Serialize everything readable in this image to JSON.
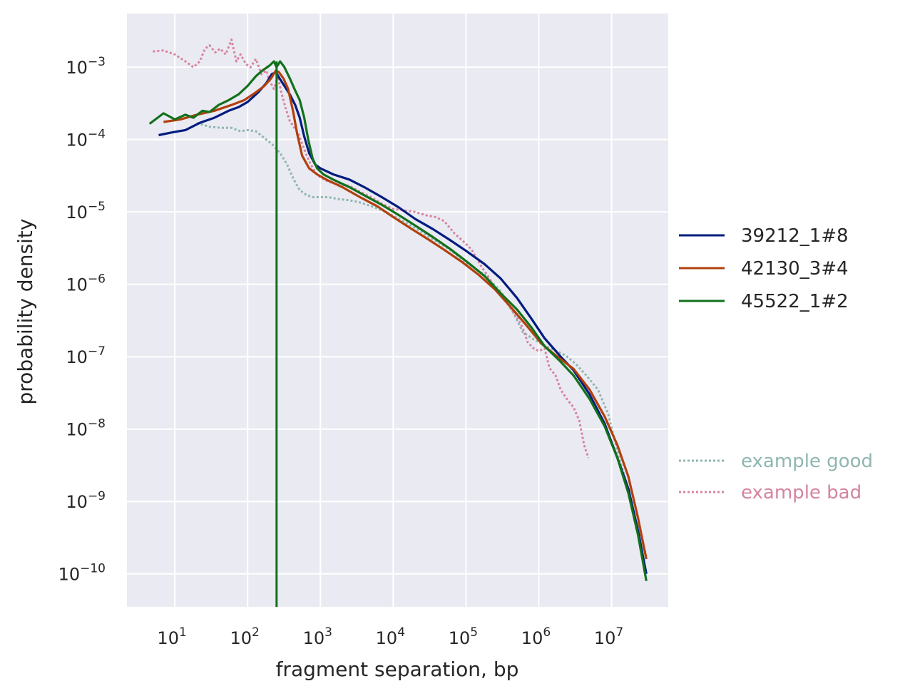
{
  "chart_data": {
    "type": "line",
    "xlabel": "fragment separation, bp",
    "ylabel": "probability density",
    "xscale": "log",
    "yscale": "log",
    "xlim": [
      2.2,
      60000000
    ],
    "ylim": [
      3.5e-11,
      0.0055
    ],
    "x_ticks": [
      {
        "base": "10",
        "exp": "1",
        "value": 10
      },
      {
        "base": "10",
        "exp": "2",
        "value": 100
      },
      {
        "base": "10",
        "exp": "3",
        "value": 1000
      },
      {
        "base": "10",
        "exp": "4",
        "value": 10000
      },
      {
        "base": "10",
        "exp": "5",
        "value": 100000
      },
      {
        "base": "10",
        "exp": "6",
        "value": 1000000
      },
      {
        "base": "10",
        "exp": "7",
        "value": 10000000
      }
    ],
    "y_ticks": [
      {
        "base": "10",
        "exp": "−3",
        "value": 0.001
      },
      {
        "base": "10",
        "exp": "−4",
        "value": 0.0001
      },
      {
        "base": "10",
        "exp": "−5",
        "value": 1e-05
      },
      {
        "base": "10",
        "exp": "−6",
        "value": 1e-06
      },
      {
        "base": "10",
        "exp": "−7",
        "value": 1e-07
      },
      {
        "base": "10",
        "exp": "−8",
        "value": 1e-08
      },
      {
        "base": "10",
        "exp": "−9",
        "value": 1e-09
      },
      {
        "base": "10",
        "exp": "−10",
        "value": 1e-10
      }
    ],
    "grid": true,
    "legend_position": "right",
    "background": "#eaeaf2",
    "series": [
      {
        "name": "39212_1#8",
        "color": "#001c7f",
        "style": "solid",
        "points": [
          [
            6,
            0.000115
          ],
          [
            9,
            0.000125
          ],
          [
            14,
            0.000135
          ],
          [
            22,
            0.00017
          ],
          [
            35,
            0.0002
          ],
          [
            55,
            0.00025
          ],
          [
            75,
            0.00028
          ],
          [
            100,
            0.00033
          ],
          [
            140,
            0.00045
          ],
          [
            180,
            0.0006
          ],
          [
            215,
            0.0008
          ],
          [
            245,
            0.00085
          ],
          [
            275,
            0.0007
          ],
          [
            320,
            0.00055
          ],
          [
            380,
            0.00042
          ],
          [
            450,
            0.0003
          ],
          [
            520,
            0.0002
          ],
          [
            600,
            0.00011
          ],
          [
            700,
            6.5e-05
          ],
          [
            850,
            4.5e-05
          ],
          [
            1000,
            4e-05
          ],
          [
            1500,
            3.3e-05
          ],
          [
            2500,
            2.8e-05
          ],
          [
            4000,
            2.2e-05
          ],
          [
            7000,
            1.6e-05
          ],
          [
            12000,
            1.15e-05
          ],
          [
            20000,
            8e-06
          ],
          [
            35000,
            5.8e-06
          ],
          [
            60000,
            4.1e-06
          ],
          [
            100000,
            2.9e-06
          ],
          [
            180000,
            1.9e-06
          ],
          [
            300000,
            1.2e-06
          ],
          [
            500000,
            6.5e-07
          ],
          [
            800000,
            3.3e-07
          ],
          [
            1200000,
            1.8e-07
          ],
          [
            2000000,
            1e-07
          ],
          [
            3000000,
            6.5e-08
          ],
          [
            5000000,
            3e-08
          ],
          [
            8000000,
            1.2e-08
          ],
          [
            12000000,
            4e-09
          ],
          [
            17000000,
            1.5e-09
          ],
          [
            23000000,
            4e-10
          ],
          [
            30000000,
            1e-10
          ]
        ]
      },
      {
        "name": "42130_3#4",
        "color": "#b1400d",
        "style": "solid",
        "points": [
          [
            7,
            0.000175
          ],
          [
            12,
            0.00019
          ],
          [
            20,
            0.00022
          ],
          [
            35,
            0.00025
          ],
          [
            60,
            0.0003
          ],
          [
            90,
            0.00035
          ],
          [
            130,
            0.00045
          ],
          [
            170,
            0.00055
          ],
          [
            210,
            0.0007
          ],
          [
            245,
            0.0009
          ],
          [
            270,
            0.00085
          ],
          [
            310,
            0.0007
          ],
          [
            360,
            0.0005
          ],
          [
            420,
            0.00025
          ],
          [
            480,
            0.00012
          ],
          [
            560,
            6e-05
          ],
          [
            700,
            4e-05
          ],
          [
            900,
            3.3e-05
          ],
          [
            1200,
            2.8e-05
          ],
          [
            2000,
            2.2e-05
          ],
          [
            3500,
            1.6e-05
          ],
          [
            6000,
            1.2e-05
          ],
          [
            10000,
            8.5e-06
          ],
          [
            18000,
            5.8e-06
          ],
          [
            30000,
            4.2e-06
          ],
          [
            50000,
            3e-06
          ],
          [
            90000,
            2e-06
          ],
          [
            150000,
            1.35e-06
          ],
          [
            250000,
            8.5e-07
          ],
          [
            400000,
            5e-07
          ],
          [
            700000,
            2.6e-07
          ],
          [
            1100000,
            1.5e-07
          ],
          [
            1800000,
            1e-07
          ],
          [
            3000000,
            6.8e-08
          ],
          [
            5000000,
            3.5e-08
          ],
          [
            8000000,
            1.5e-08
          ],
          [
            12000000,
            6e-09
          ],
          [
            17000000,
            2.2e-09
          ],
          [
            23000000,
            6e-10
          ],
          [
            30000000,
            1.6e-10
          ]
        ]
      },
      {
        "name": "45522_1#2",
        "color": "#12711c",
        "style": "solid",
        "points": [
          [
            4.5,
            0.000165
          ],
          [
            7,
            0.00023
          ],
          [
            10,
            0.00019
          ],
          [
            14,
            0.00022
          ],
          [
            18,
            0.0002
          ],
          [
            24,
            0.00025
          ],
          [
            30,
            0.00024
          ],
          [
            40,
            0.0003
          ],
          [
            55,
            0.00035
          ],
          [
            75,
            0.00042
          ],
          [
            100,
            0.00055
          ],
          [
            130,
            0.00075
          ],
          [
            160,
            0.0009
          ],
          [
            200,
            0.00105
          ],
          [
            230,
            0.0012
          ],
          [
            250,
            0.001
          ],
          [
            280,
            0.0012
          ],
          [
            320,
            0.001
          ],
          [
            380,
            0.0007
          ],
          [
            440,
            0.0005
          ],
          [
            520,
            0.00035
          ],
          [
            600,
            0.0002
          ],
          [
            680,
            0.0001
          ],
          [
            780,
            5.5e-05
          ],
          [
            900,
            4e-05
          ],
          [
            1100,
            3.3e-05
          ],
          [
            1500,
            2.8e-05
          ],
          [
            2500,
            2.2e-05
          ],
          [
            4000,
            1.7e-05
          ],
          [
            7000,
            1.25e-05
          ],
          [
            12000,
            9e-06
          ],
          [
            20000,
            6.5e-06
          ],
          [
            35000,
            4.5e-06
          ],
          [
            60000,
            3.1e-06
          ],
          [
            100000,
            2.1e-06
          ],
          [
            180000,
            1.3e-06
          ],
          [
            300000,
            7.5e-07
          ],
          [
            500000,
            4.5e-07
          ],
          [
            800000,
            2.5e-07
          ],
          [
            1200000,
            1.4e-07
          ],
          [
            2000000,
            8.5e-08
          ],
          [
            3000000,
            5.5e-08
          ],
          [
            5000000,
            2.6e-08
          ],
          [
            8000000,
            1.1e-08
          ],
          [
            12000000,
            4e-09
          ],
          [
            17000000,
            1.3e-09
          ],
          [
            23000000,
            3.5e-10
          ],
          [
            30000000,
            8e-11
          ]
        ]
      },
      {
        "name": "example good",
        "color": "#8fb6b0",
        "style": "dotted",
        "points": [
          [
            20,
            0.00017
          ],
          [
            30,
            0.00015
          ],
          [
            45,
            0.000145
          ],
          [
            60,
            0.000145
          ],
          [
            80,
            0.00013
          ],
          [
            100,
            0.000135
          ],
          [
            130,
            0.00013
          ],
          [
            170,
            0.000105
          ],
          [
            220,
            8.5e-05
          ],
          [
            280,
            6.5e-05
          ],
          [
            350,
            4.5e-05
          ],
          [
            430,
            2.8e-05
          ],
          [
            520,
            2e-05
          ],
          [
            650,
            1.7e-05
          ],
          [
            800,
            1.6e-05
          ],
          [
            1000,
            1.6e-05
          ],
          [
            1300,
            1.6e-05
          ],
          [
            1800,
            1.5e-05
          ],
          [
            2500,
            1.45e-05
          ],
          [
            3500,
            1.35e-05
          ],
          [
            5000,
            1.2e-05
          ],
          [
            8000,
            1e-05
          ],
          [
            12000,
            8e-06
          ],
          [
            20000,
            6e-06
          ],
          [
            35000,
            4.2e-06
          ],
          [
            60000,
            3e-06
          ],
          [
            100000,
            2e-06
          ],
          [
            180000,
            1.35e-06
          ],
          [
            300000,
            8e-07
          ],
          [
            450000,
            4e-07
          ],
          [
            600000,
            2.2e-07
          ],
          [
            800000,
            1.8e-07
          ],
          [
            1100000,
            1.5e-07
          ],
          [
            1600000,
            1.25e-07
          ],
          [
            2300000,
            1.05e-07
          ],
          [
            3200000,
            8e-08
          ],
          [
            4500000,
            5.5e-08
          ],
          [
            6500000,
            3.5e-08
          ],
          [
            9000000,
            1.6e-08
          ],
          [
            12000000,
            5e-09
          ],
          [
            16000000,
            1.8e-09
          ],
          [
            22000000,
            5e-10
          ],
          [
            30000000,
            1.8e-10
          ]
        ]
      },
      {
        "name": "example bad",
        "color": "#d5849f",
        "style": "dotted",
        "points": [
          [
            5,
            0.00165
          ],
          [
            7,
            0.0017
          ],
          [
            10,
            0.0015
          ],
          [
            14,
            0.0012
          ],
          [
            18,
            0.001
          ],
          [
            22,
            0.0012
          ],
          [
            26,
            0.0018
          ],
          [
            30,
            0.002
          ],
          [
            36,
            0.0016
          ],
          [
            42,
            0.0018
          ],
          [
            50,
            0.0015
          ],
          [
            60,
            0.0024
          ],
          [
            70,
            0.0012
          ],
          [
            80,
            0.0015
          ],
          [
            95,
            0.0011
          ],
          [
            110,
            0.001
          ],
          [
            130,
            0.0013
          ],
          [
            155,
            0.0008
          ],
          [
            180,
            0.0009
          ],
          [
            200,
            0.00065
          ],
          [
            230,
            0.0005
          ],
          [
            260,
            0.00075
          ],
          [
            290,
            0.00045
          ],
          [
            330,
            0.00028
          ],
          [
            380,
            0.00018
          ],
          [
            430,
            0.00015
          ],
          [
            500,
            0.00012
          ],
          [
            580,
            8e-05
          ],
          [
            700,
            5e-05
          ],
          [
            850,
            3.5e-05
          ],
          [
            1000,
            3e-05
          ],
          [
            1300,
            2.6e-05
          ],
          [
            1800,
            2.4e-05
          ],
          [
            2500,
            2.3e-05
          ],
          [
            3500,
            1.9e-05
          ],
          [
            5000,
            1.6e-05
          ],
          [
            7000,
            1.3e-05
          ],
          [
            10000,
            1.1e-05
          ],
          [
            14000,
            1.05e-05
          ],
          [
            20000,
            1e-05
          ],
          [
            28000,
            9e-06
          ],
          [
            38000,
            8.5e-06
          ],
          [
            50000,
            7.5e-06
          ],
          [
            70000,
            5e-06
          ],
          [
            90000,
            4e-06
          ],
          [
            120000,
            3e-06
          ],
          [
            160000,
            1.8e-06
          ],
          [
            200000,
            1.3e-06
          ],
          [
            260000,
            8.5e-07
          ],
          [
            330000,
            6.5e-07
          ],
          [
            420000,
            4.5e-07
          ],
          [
            500000,
            3.5e-07
          ],
          [
            600000,
            2.5e-07
          ],
          [
            700000,
            1.6e-07
          ],
          [
            850000,
            1.3e-07
          ],
          [
            1000000,
            1.2e-07
          ],
          [
            1200000,
            1.3e-07
          ],
          [
            1400000,
            7e-08
          ],
          [
            1700000,
            5.5e-08
          ],
          [
            2000000,
            3.5e-08
          ],
          [
            2500000,
            2.5e-08
          ],
          [
            3000000,
            2e-08
          ],
          [
            3600000,
            1.3e-08
          ],
          [
            4200000,
            6e-09
          ],
          [
            4800000,
            4e-09
          ]
        ]
      }
    ],
    "vertical_line": {
      "x": 250,
      "color": "#12711c",
      "from": 0.0012,
      "to": 3.5e-11
    }
  }
}
